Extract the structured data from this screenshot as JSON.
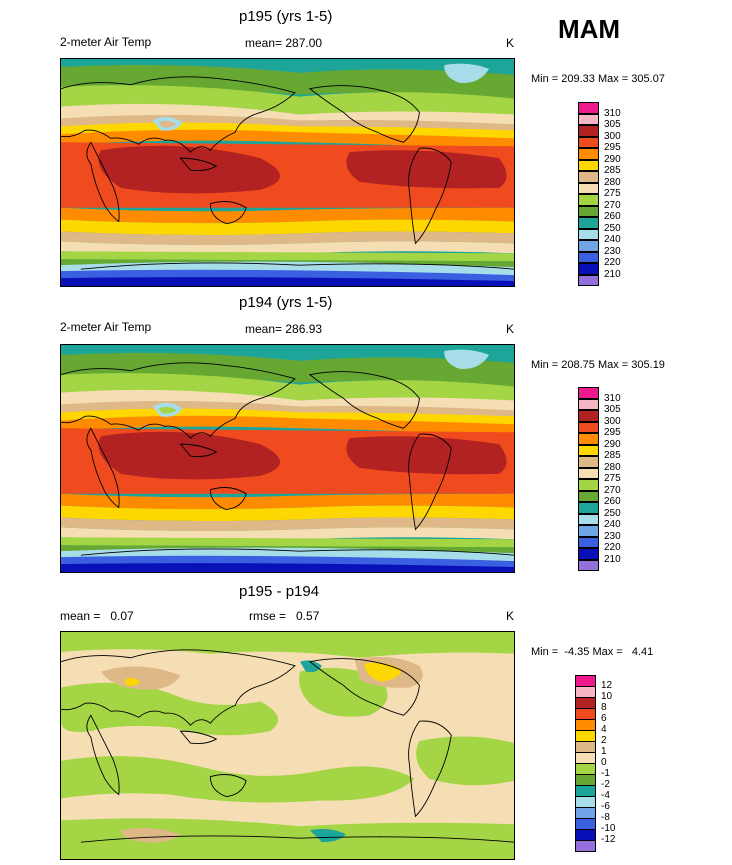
{
  "figure": {
    "season": "MAM"
  },
  "panels": [
    {
      "id": "p195",
      "title": "p195 (yrs 1-5)",
      "left_label": "2-meter Air Temp",
      "center_label": "mean= 287.00",
      "units": "K",
      "minmax": "Min = 209.33 Max = 305.07",
      "legend": {
        "labels": [
          "310",
          "305",
          "300",
          "295",
          "290",
          "285",
          "280",
          "275",
          "270",
          "260",
          "250",
          "240",
          "230",
          "220",
          "210"
        ],
        "colors": [
          "#ee1a8c",
          "#f6b6c4",
          "#b22222",
          "#f04b1e",
          "#ff8c00",
          "#ffd700",
          "#deb887",
          "#f5deb3",
          "#a3d545",
          "#66a832",
          "#1ea59a",
          "#a6dde8",
          "#6fa4e6",
          "#3a5fe0",
          "#0a10b8",
          "#9370db"
        ]
      }
    },
    {
      "id": "p194",
      "title": "p194 (yrs 1-5)",
      "left_label": "2-meter Air Temp",
      "center_label": "mean= 286.93",
      "units": "K",
      "minmax": "Min = 208.75 Max = 305.19",
      "legend": {
        "labels": [
          "310",
          "305",
          "300",
          "295",
          "290",
          "285",
          "280",
          "275",
          "270",
          "260",
          "250",
          "240",
          "230",
          "220",
          "210"
        ],
        "colors": [
          "#ee1a8c",
          "#f6b6c4",
          "#b22222",
          "#f04b1e",
          "#ff8c00",
          "#ffd700",
          "#deb887",
          "#f5deb3",
          "#a3d545",
          "#66a832",
          "#1ea59a",
          "#a6dde8",
          "#6fa4e6",
          "#3a5fe0",
          "#0a10b8",
          "#9370db"
        ]
      }
    },
    {
      "id": "diff",
      "title": "p195 - p194",
      "left_label": "mean =   0.07",
      "center_label": "rmse =   0.57",
      "units": "K",
      "minmax": "Min =  -4.35 Max =   4.41",
      "legend": {
        "labels": [
          "12",
          "10",
          "8",
          "6",
          "4",
          "2",
          "1",
          "0",
          "-1",
          "-2",
          "-4",
          "-6",
          "-8",
          "-10",
          "-12"
        ],
        "colors": [
          "#ee1a8c",
          "#f6b6c4",
          "#b22222",
          "#f04b1e",
          "#ff8c00",
          "#ffd700",
          "#deb887",
          "#f5deb3",
          "#a3d545",
          "#66a832",
          "#1ea59a",
          "#a6dde8",
          "#6fa4e6",
          "#3a5fe0",
          "#0a10b8",
          "#9370db"
        ]
      }
    }
  ]
}
